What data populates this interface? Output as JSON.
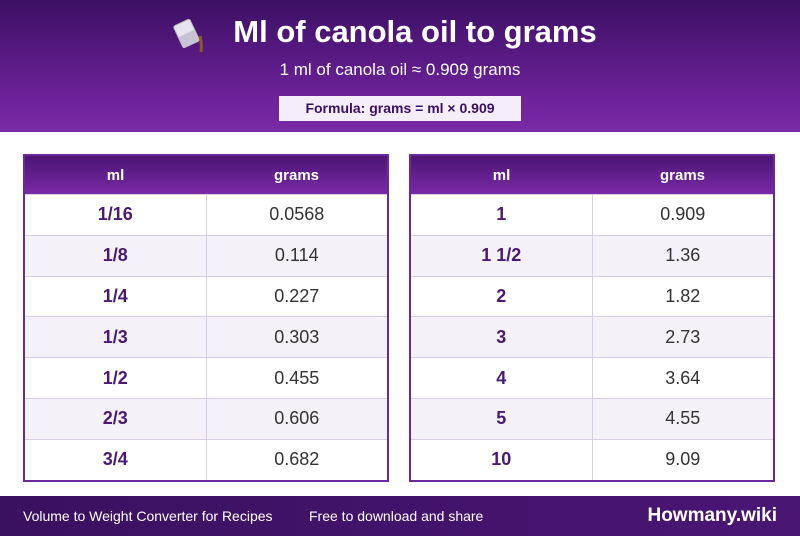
{
  "header": {
    "title": "Ml of canola oil to grams",
    "subtitle": "1 ml of canola oil ≈ 0.909 grams",
    "formula": "Formula: grams = ml × 0.909"
  },
  "tables": [
    {
      "columns": [
        "ml",
        "grams"
      ],
      "rows": [
        [
          "1/16",
          "0.0568"
        ],
        [
          "1/8",
          "0.114"
        ],
        [
          "1/4",
          "0.227"
        ],
        [
          "1/3",
          "0.303"
        ],
        [
          "1/2",
          "0.455"
        ],
        [
          "2/3",
          "0.606"
        ],
        [
          "3/4",
          "0.682"
        ]
      ]
    },
    {
      "columns": [
        "ml",
        "grams"
      ],
      "rows": [
        [
          "1",
          "0.909"
        ],
        [
          "1 1/2",
          "1.36"
        ],
        [
          "2",
          "1.82"
        ],
        [
          "3",
          "2.73"
        ],
        [
          "4",
          "3.64"
        ],
        [
          "5",
          "4.55"
        ],
        [
          "10",
          "9.09"
        ]
      ]
    }
  ],
  "footer": {
    "left": "Volume to Weight Converter for Recipes",
    "middle": "Free to download and share",
    "brand": "Howmany.wiki"
  }
}
